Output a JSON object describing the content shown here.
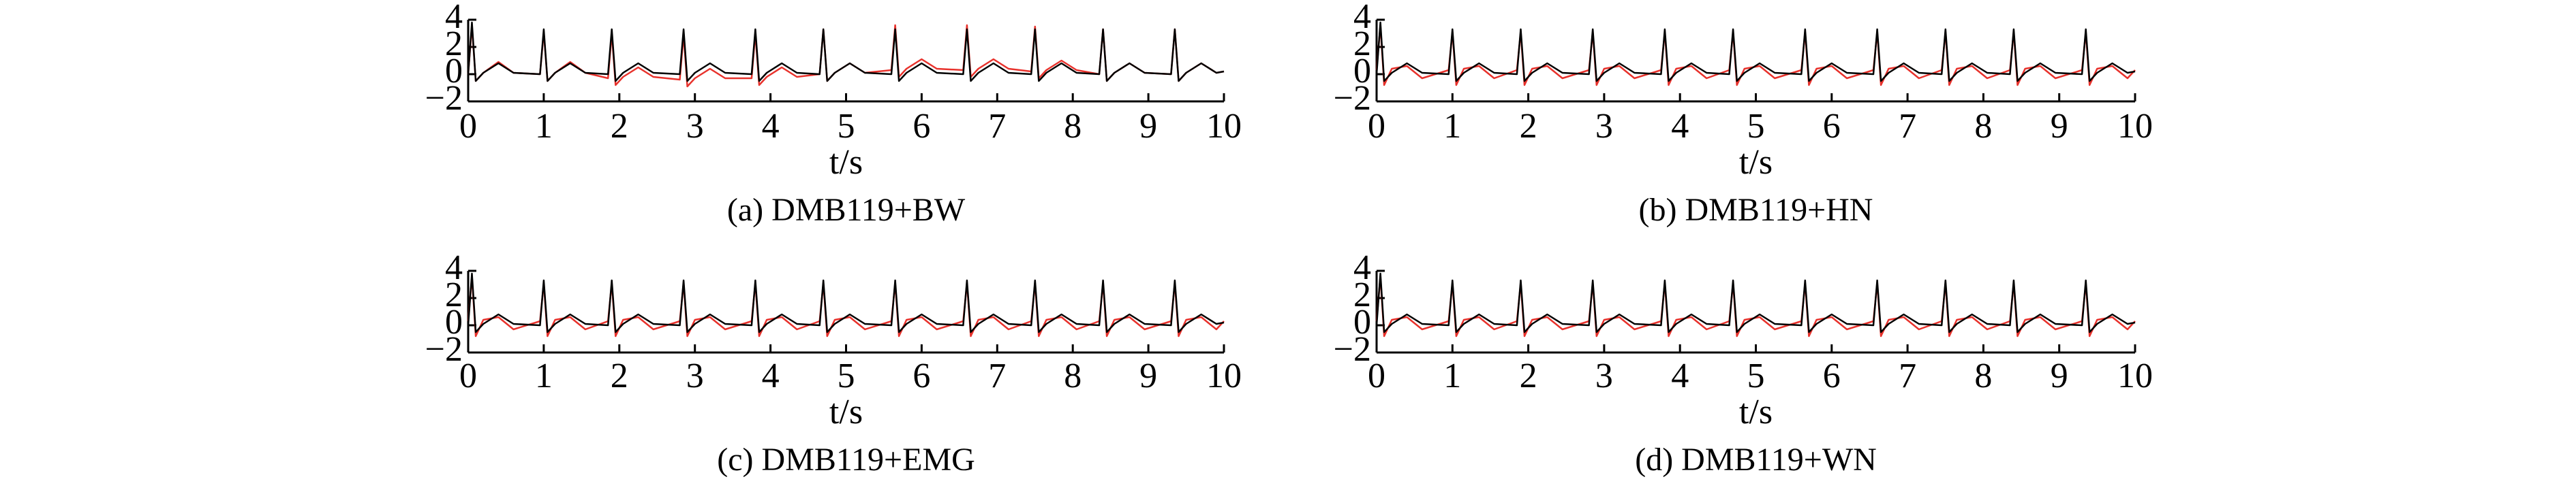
{
  "chart_data": [
    {
      "type": "line",
      "title": "(a) DMB119+BW",
      "xlabel": "t/s",
      "x": [
        0,
        0.05,
        0.1,
        0.2,
        0.4,
        0.6,
        0.95,
        1,
        1.05,
        1.15,
        1.35,
        1.55,
        1.85,
        1.9,
        1.95,
        2.05,
        2.25,
        2.45,
        2.8,
        2.85,
        2.9,
        3,
        3.2,
        3.4,
        3.75,
        3.8,
        3.85,
        3.95,
        4.15,
        4.35,
        4.65,
        4.7,
        4.75,
        4.85,
        5.05,
        5.25,
        5.6,
        5.65,
        5.7,
        5.8,
        6,
        6.2,
        6.55,
        6.6,
        6.65,
        6.75,
        6.95,
        7.15,
        7.45,
        7.5,
        7.55,
        7.65,
        7.85,
        8.05,
        8.35,
        8.4,
        8.45,
        8.55,
        8.75,
        8.95,
        9.3,
        9.35,
        9.4,
        9.5,
        9.7,
        9.9,
        10
      ],
      "series": [
        {
          "color": "#e8322c",
          "values": [
            0,
            3.6,
            -0.5,
            0.1,
            0.9,
            0.1,
            0,
            3.1,
            -0.5,
            0.1,
            0.9,
            0.1,
            -0.3,
            3,
            -0.8,
            -0.2,
            0.5,
            -0.2,
            -0.4,
            2.9,
            -0.9,
            -0.3,
            0.4,
            -0.3,
            -0.3,
            3,
            -0.8,
            -0.2,
            0.5,
            -0.2,
            0,
            3.3,
            -0.5,
            0.1,
            0.8,
            0.1,
            0.3,
            3.6,
            -0.2,
            0.4,
            1.1,
            0.4,
            0.3,
            3.6,
            -0.2,
            0.4,
            1.1,
            0.4,
            0.2,
            3.5,
            -0.3,
            0.3,
            1,
            0.3,
            0,
            3.3,
            -0.5,
            0.1,
            0.8,
            0.1,
            0,
            3.3,
            -0.5,
            0.1,
            0.8,
            0.1,
            0.2
          ]
        },
        {
          "color": "#000000",
          "values": [
            0,
            3.8,
            -0.5,
            0.1,
            0.8,
            0.1,
            0,
            3.3,
            -0.5,
            0.1,
            0.8,
            0.1,
            0,
            3.3,
            -0.5,
            0.1,
            0.8,
            0.1,
            0,
            3.3,
            -0.5,
            0.1,
            0.8,
            0.1,
            0,
            3.3,
            -0.5,
            0.1,
            0.8,
            0.1,
            0,
            3.3,
            -0.5,
            0.1,
            0.8,
            0.1,
            0,
            3.3,
            -0.5,
            0.1,
            0.8,
            0.1,
            0,
            3.3,
            -0.5,
            0.1,
            0.8,
            0.1,
            0,
            3.3,
            -0.5,
            0.1,
            0.8,
            0.1,
            0,
            3.3,
            -0.5,
            0.1,
            0.8,
            0.1,
            0,
            3.3,
            -0.5,
            0.1,
            0.8,
            0.1,
            0.2
          ]
        }
      ],
      "xlim": [
        0,
        10
      ],
      "xticks": [
        0,
        1,
        2,
        3,
        4,
        5,
        6,
        7,
        8,
        9,
        10
      ],
      "ylim": [
        -2,
        4
      ],
      "yticks": [
        4,
        2,
        0,
        {
          "value": -2,
          "label": "−2"
        }
      ]
    },
    {
      "type": "line",
      "title": "(b) DMB119+HN",
      "xlabel": "t/s",
      "x": [
        0,
        0.05,
        0.1,
        0.2,
        0.4,
        0.6,
        0.95,
        1,
        1.05,
        1.15,
        1.35,
        1.55,
        1.85,
        1.9,
        1.95,
        2.05,
        2.25,
        2.45,
        2.8,
        2.85,
        2.9,
        3,
        3.2,
        3.4,
        3.75,
        3.8,
        3.85,
        3.95,
        4.15,
        4.35,
        4.65,
        4.7,
        4.75,
        4.85,
        5.05,
        5.25,
        5.6,
        5.65,
        5.7,
        5.8,
        6,
        6.2,
        6.55,
        6.6,
        6.65,
        6.75,
        6.95,
        7.15,
        7.45,
        7.5,
        7.55,
        7.65,
        7.85,
        8.05,
        8.35,
        8.4,
        8.45,
        8.55,
        8.75,
        8.95,
        9.3,
        9.35,
        9.4,
        9.5,
        9.7,
        9.9,
        10
      ],
      "series": [
        {
          "color": "#e8322c",
          "values": [
            0.3,
            3.6,
            -0.8,
            0.4,
            0.6,
            -0.3,
            0.3,
            3.1,
            -0.8,
            0.4,
            0.6,
            -0.3,
            0.3,
            3.1,
            -0.8,
            0.4,
            0.6,
            -0.3,
            0.3,
            3.1,
            -0.8,
            0.4,
            0.6,
            -0.3,
            0.3,
            3.1,
            -0.8,
            0.4,
            0.6,
            -0.3,
            0.3,
            3.1,
            -0.8,
            0.4,
            0.6,
            -0.3,
            0.3,
            3.1,
            -0.8,
            0.4,
            0.6,
            -0.3,
            0.3,
            3.1,
            -0.8,
            0.4,
            0.6,
            -0.3,
            0.3,
            3.1,
            -0.8,
            0.4,
            0.6,
            -0.3,
            0.3,
            3.1,
            -0.8,
            0.4,
            0.6,
            -0.3,
            0.3,
            3.1,
            -0.8,
            0.4,
            0.6,
            -0.3,
            0.3
          ]
        },
        {
          "color": "#000000",
          "values": [
            0,
            3.8,
            -0.5,
            0.1,
            0.8,
            0.1,
            0,
            3.3,
            -0.5,
            0.1,
            0.8,
            0.1,
            0,
            3.3,
            -0.5,
            0.1,
            0.8,
            0.1,
            0,
            3.3,
            -0.5,
            0.1,
            0.8,
            0.1,
            0,
            3.3,
            -0.5,
            0.1,
            0.8,
            0.1,
            0,
            3.3,
            -0.5,
            0.1,
            0.8,
            0.1,
            0,
            3.3,
            -0.5,
            0.1,
            0.8,
            0.1,
            0,
            3.3,
            -0.5,
            0.1,
            0.8,
            0.1,
            0,
            3.3,
            -0.5,
            0.1,
            0.8,
            0.1,
            0,
            3.3,
            -0.5,
            0.1,
            0.8,
            0.1,
            0,
            3.3,
            -0.5,
            0.1,
            0.8,
            0.1,
            0.2
          ]
        }
      ],
      "xlim": [
        0,
        10
      ],
      "xticks": [
        0,
        1,
        2,
        3,
        4,
        5,
        6,
        7,
        8,
        9,
        10
      ],
      "ylim": [
        -2,
        4
      ],
      "yticks": [
        4,
        2,
        0,
        {
          "value": -2,
          "label": "−2"
        }
      ]
    },
    {
      "type": "line",
      "title": "(c) DMB119+EMG",
      "xlabel": "t/s",
      "x": [
        0,
        0.05,
        0.1,
        0.2,
        0.4,
        0.6,
        0.95,
        1,
        1.05,
        1.15,
        1.35,
        1.55,
        1.85,
        1.9,
        1.95,
        2.05,
        2.25,
        2.45,
        2.8,
        2.85,
        2.9,
        3,
        3.2,
        3.4,
        3.75,
        3.8,
        3.85,
        3.95,
        4.15,
        4.35,
        4.65,
        4.7,
        4.75,
        4.85,
        5.05,
        5.25,
        5.6,
        5.65,
        5.7,
        5.8,
        6,
        6.2,
        6.55,
        6.6,
        6.65,
        6.75,
        6.95,
        7.15,
        7.45,
        7.5,
        7.55,
        7.65,
        7.85,
        8.05,
        8.35,
        8.4,
        8.45,
        8.55,
        8.75,
        8.95,
        9.3,
        9.35,
        9.4,
        9.5,
        9.7,
        9.9,
        10
      ],
      "series": [
        {
          "color": "#e8322c",
          "values": [
            0.3,
            3.6,
            -0.8,
            0.4,
            0.6,
            -0.3,
            0.3,
            3.1,
            -0.8,
            0.4,
            0.6,
            -0.3,
            0.3,
            3.1,
            -0.8,
            0.4,
            0.6,
            -0.3,
            0.3,
            3.1,
            -0.8,
            0.4,
            0.6,
            -0.3,
            0.3,
            3.1,
            -0.8,
            0.4,
            0.6,
            -0.3,
            0.3,
            3.1,
            -0.8,
            0.4,
            0.6,
            -0.3,
            0.3,
            3.1,
            -0.8,
            0.4,
            0.6,
            -0.3,
            0.3,
            3.1,
            -0.8,
            0.4,
            0.6,
            -0.3,
            0.3,
            3.1,
            -0.8,
            0.4,
            0.6,
            -0.3,
            0.3,
            3.1,
            -0.8,
            0.4,
            0.6,
            -0.3,
            0.3,
            3.1,
            -0.8,
            0.4,
            0.6,
            -0.3,
            0.3
          ]
        },
        {
          "color": "#000000",
          "values": [
            0,
            3.8,
            -0.5,
            0.1,
            0.8,
            0.1,
            0,
            3.3,
            -0.5,
            0.1,
            0.8,
            0.1,
            0,
            3.3,
            -0.5,
            0.1,
            0.8,
            0.1,
            0,
            3.3,
            -0.5,
            0.1,
            0.8,
            0.1,
            0,
            3.3,
            -0.5,
            0.1,
            0.8,
            0.1,
            0,
            3.3,
            -0.5,
            0.1,
            0.8,
            0.1,
            0,
            3.3,
            -0.5,
            0.1,
            0.8,
            0.1,
            0,
            3.3,
            -0.5,
            0.1,
            0.8,
            0.1,
            0,
            3.3,
            -0.5,
            0.1,
            0.8,
            0.1,
            0,
            3.3,
            -0.5,
            0.1,
            0.8,
            0.1,
            0,
            3.3,
            -0.5,
            0.1,
            0.8,
            0.1,
            0.2
          ]
        }
      ],
      "xlim": [
        0,
        10
      ],
      "xticks": [
        0,
        1,
        2,
        3,
        4,
        5,
        6,
        7,
        8,
        9,
        10
      ],
      "ylim": [
        -2,
        4
      ],
      "yticks": [
        4,
        2,
        0,
        {
          "value": -2,
          "label": "−2"
        }
      ]
    },
    {
      "type": "line",
      "title": "(d) DMB119+WN",
      "xlabel": "t/s",
      "x": [
        0,
        0.05,
        0.1,
        0.2,
        0.4,
        0.6,
        0.95,
        1,
        1.05,
        1.15,
        1.35,
        1.55,
        1.85,
        1.9,
        1.95,
        2.05,
        2.25,
        2.45,
        2.8,
        2.85,
        2.9,
        3,
        3.2,
        3.4,
        3.75,
        3.8,
        3.85,
        3.95,
        4.15,
        4.35,
        4.65,
        4.7,
        4.75,
        4.85,
        5.05,
        5.25,
        5.6,
        5.65,
        5.7,
        5.8,
        6,
        6.2,
        6.55,
        6.6,
        6.65,
        6.75,
        6.95,
        7.15,
        7.45,
        7.5,
        7.55,
        7.65,
        7.85,
        8.05,
        8.35,
        8.4,
        8.45,
        8.55,
        8.75,
        8.95,
        9.3,
        9.35,
        9.4,
        9.5,
        9.7,
        9.9,
        10
      ],
      "series": [
        {
          "color": "#e8322c",
          "values": [
            0.3,
            3.6,
            -0.8,
            0.4,
            0.6,
            -0.3,
            0.3,
            3.1,
            -0.8,
            0.4,
            0.6,
            -0.3,
            0.3,
            3.1,
            -0.8,
            0.4,
            0.6,
            -0.3,
            0.3,
            3.1,
            -0.8,
            0.4,
            0.6,
            -0.3,
            0.3,
            3.1,
            -0.8,
            0.4,
            0.6,
            -0.3,
            0.3,
            3.1,
            -0.8,
            0.4,
            0.6,
            -0.3,
            0.3,
            3.1,
            -0.8,
            0.4,
            0.6,
            -0.3,
            0.3,
            3.1,
            -0.8,
            0.4,
            0.6,
            -0.3,
            0.3,
            3.1,
            -0.8,
            0.4,
            0.6,
            -0.3,
            0.3,
            3.1,
            -0.8,
            0.4,
            0.6,
            -0.3,
            0.3,
            3.1,
            -0.8,
            0.4,
            0.6,
            -0.3,
            0.3
          ]
        },
        {
          "color": "#000000",
          "values": [
            0,
            3.8,
            -0.5,
            0.1,
            0.8,
            0.1,
            0,
            3.3,
            -0.5,
            0.1,
            0.8,
            0.1,
            0,
            3.3,
            -0.5,
            0.1,
            0.8,
            0.1,
            0,
            3.3,
            -0.5,
            0.1,
            0.8,
            0.1,
            0,
            3.3,
            -0.5,
            0.1,
            0.8,
            0.1,
            0,
            3.3,
            -0.5,
            0.1,
            0.8,
            0.1,
            0,
            3.3,
            -0.5,
            0.1,
            0.8,
            0.1,
            0,
            3.3,
            -0.5,
            0.1,
            0.8,
            0.1,
            0,
            3.3,
            -0.5,
            0.1,
            0.8,
            0.1,
            0,
            3.3,
            -0.5,
            0.1,
            0.8,
            0.1,
            0,
            3.3,
            -0.5,
            0.1,
            0.8,
            0.1,
            0.2
          ]
        }
      ],
      "xlim": [
        0,
        10
      ],
      "xticks": [
        0,
        1,
        2,
        3,
        4,
        5,
        6,
        7,
        8,
        9,
        10
      ],
      "ylim": [
        -2,
        4
      ],
      "yticks": [
        4,
        2,
        0,
        {
          "value": -2,
          "label": "−2"
        }
      ]
    }
  ]
}
